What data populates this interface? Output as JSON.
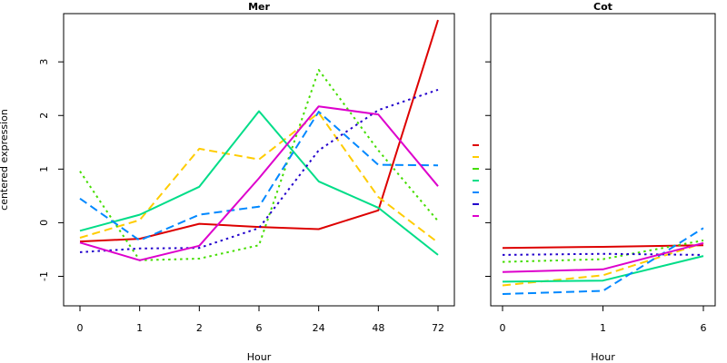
{
  "chart_data": [
    {
      "type": "line",
      "title": "Mer",
      "xlabel": "Hour",
      "ylabel": "centered expression",
      "categories": [
        "0",
        "1",
        "2",
        "6",
        "24",
        "48",
        "72"
      ],
      "ylim": [
        -1.55,
        3.9
      ],
      "yticks": [
        -1,
        0,
        1,
        2,
        3
      ],
      "grid": false,
      "series": [
        {
          "color": "#dd0000",
          "dash": "solid",
          "values": [
            -0.35,
            -0.3,
            -0.02,
            -0.08,
            -0.12,
            0.23,
            3.78
          ]
        },
        {
          "color": "#ffcc00",
          "dash": "dashed",
          "values": [
            -0.28,
            0.05,
            1.38,
            1.18,
            2.05,
            0.48,
            -0.37
          ]
        },
        {
          "color": "#44dd00",
          "dash": "dotted",
          "values": [
            0.96,
            -0.7,
            -0.67,
            -0.42,
            2.85,
            1.35,
            0.03
          ]
        },
        {
          "color": "#00dd88",
          "dash": "solid",
          "values": [
            -0.15,
            0.15,
            0.67,
            2.08,
            0.77,
            0.28,
            -0.6
          ]
        },
        {
          "color": "#0088ff",
          "dash": "dashed",
          "values": [
            0.45,
            -0.33,
            0.15,
            0.3,
            2.07,
            1.08,
            1.07
          ]
        },
        {
          "color": "#2200cc",
          "dash": "dotted",
          "values": [
            -0.55,
            -0.48,
            -0.47,
            -0.1,
            1.35,
            2.1,
            2.48
          ]
        },
        {
          "color": "#dd00cc",
          "dash": "solid",
          "values": [
            -0.37,
            -0.7,
            -0.43,
            0.83,
            2.17,
            2.02,
            0.68
          ]
        }
      ]
    },
    {
      "type": "line",
      "title": "Cot",
      "xlabel": "Hour",
      "ylabel": "",
      "categories": [
        "0",
        "1",
        "6"
      ],
      "ylim": [
        -1.55,
        3.9
      ],
      "yticks": [
        -1,
        0,
        1,
        2,
        3
      ],
      "grid": false,
      "legend": "left",
      "series": [
        {
          "color": "#dd0000",
          "dash": "solid",
          "values": [
            -0.47,
            -0.45,
            -0.42
          ]
        },
        {
          "color": "#ffcc00",
          "dash": "dashed",
          "values": [
            -1.17,
            -0.98,
            -0.38
          ]
        },
        {
          "color": "#44dd00",
          "dash": "dotted",
          "values": [
            -0.73,
            -0.68,
            -0.33
          ]
        },
        {
          "color": "#00dd88",
          "dash": "solid",
          "values": [
            -1.1,
            -1.08,
            -0.62
          ]
        },
        {
          "color": "#0088ff",
          "dash": "dashed",
          "values": [
            -1.33,
            -1.27,
            -0.1
          ]
        },
        {
          "color": "#2200cc",
          "dash": "dotted",
          "values": [
            -0.6,
            -0.58,
            -0.6
          ]
        },
        {
          "color": "#dd00cc",
          "dash": "solid",
          "values": [
            -0.92,
            -0.87,
            -0.38
          ]
        }
      ]
    }
  ]
}
